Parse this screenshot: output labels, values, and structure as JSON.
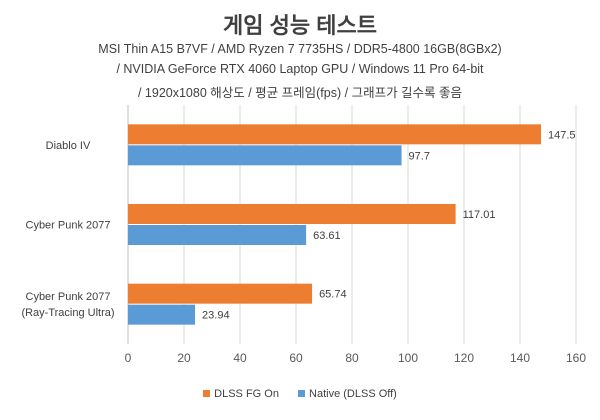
{
  "chart_data": {
    "type": "bar",
    "orientation": "horizontal",
    "title": "게임 성능 테스트",
    "subtitle_lines": [
      "MSI Thin A15 B7VF / AMD Ryzen 7 7735HS / DDR5-4800 16GB(8GBx2)",
      "/ NVIDIA GeForce RTX 4060 Laptop GPU / Windows 11 Pro 64-bit",
      "/ 1920x1080 해상도 / 평균 프레임(fps) / 그래프가 길수록 좋음"
    ],
    "categories": [
      "Diablo IV",
      "Cyber Punk 2077",
      "Cyber Punk 2077\n(Ray-Tracing Ultra)"
    ],
    "series": [
      {
        "name": "DLSS FG On",
        "color": "#ED7D31",
        "values": [
          147.5,
          117.01,
          65.74
        ],
        "labels": [
          "147.5",
          "117.01",
          "65.74"
        ]
      },
      {
        "name": "Native (DLSS Off)",
        "color": "#5B9BD5",
        "values": [
          97.7,
          63.61,
          23.94
        ],
        "labels": [
          "97.7",
          "63.61",
          "23.94"
        ]
      }
    ],
    "xlim": [
      0,
      160
    ],
    "xticks": [
      0,
      20,
      40,
      60,
      80,
      100,
      120,
      140,
      160
    ],
    "grid": true,
    "legend": "bottom"
  }
}
